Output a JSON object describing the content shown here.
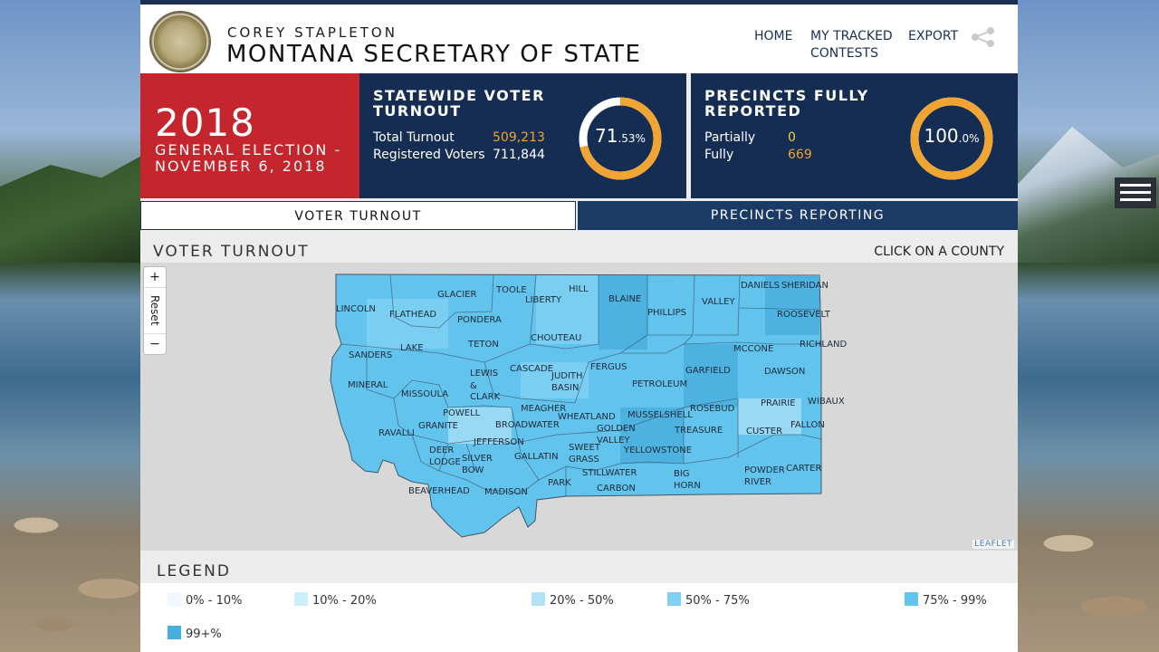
{
  "header": {
    "subtitle": "COREY STAPLETON",
    "title": "MONTANA SECRETARY OF STATE",
    "nav": {
      "home": "HOME",
      "tracked": "MY TRACKED CONTESTS",
      "export": "EXPORT"
    }
  },
  "election": {
    "year": "2018",
    "name": "GENERAL ELECTION - NOVEMBER 6, 2018"
  },
  "turnout": {
    "title": "STATEWIDE VOTER TURNOUT",
    "total_label": "Total Turnout",
    "total_value": "509,213",
    "registered_label": "Registered Voters",
    "registered_value": "711,844",
    "pct_main": "71",
    "pct_dec": ".53%",
    "fraction": 0.7153
  },
  "precincts": {
    "title": "PRECINCTS FULLY REPORTED",
    "partial_label": "Partially",
    "partial_value": "0",
    "fully_label": "Fully",
    "fully_value": "669",
    "pct_main": "100",
    "pct_dec": ".0%",
    "fraction": 1.0
  },
  "tabs": {
    "turnout": "VOTER TURNOUT",
    "precincts": "PRECINCTS REPORTING"
  },
  "map": {
    "title": "VOTER TURNOUT",
    "hint": "CLICK ON A COUNTY",
    "zoom_in": "+",
    "reset": "Reset",
    "zoom_out": "−",
    "attribution": "LEAFLET",
    "counties": [
      "GLACIER",
      "TOOLE",
      "LIBERTY",
      "HILL",
      "BLAINE",
      "PHILLIPS",
      "VALLEY",
      "DANIELS",
      "SHERIDAN",
      "ROOSEVELT",
      "LINCOLN",
      "FLATHEAD",
      "PONDERA",
      "CHOUTEAU",
      "RICHLAND",
      "MCCONE",
      "LAKE",
      "TETON",
      "SANDERS",
      "LEWIS & CLARK",
      "CASCADE",
      "JUDITH BASIN",
      "FERGUS",
      "GARFIELD",
      "DAWSON",
      "PETROLEUM",
      "MINERAL",
      "MISSOULA",
      "PRAIRIE",
      "WIBAUX",
      "MEAGHER",
      "POWELL",
      "WHEATLAND",
      "MUSSELSHELL",
      "ROSEBUD",
      "FALLON",
      "GRANITE",
      "BROADWATER",
      "GOLDEN VALLEY",
      "TREASURE",
      "CUSTER",
      "RAVALLI",
      "JEFFERSON",
      "DEER LODGE",
      "SWEET GRASS",
      "YELLOWSTONE",
      "SILVER BOW",
      "GALLATIN",
      "STILLWATER",
      "BIG HORN",
      "POWDER RIVER",
      "CARTER",
      "PARK",
      "CARBON",
      "BEAVERHEAD",
      "MADISON"
    ]
  },
  "legend": {
    "title": "LEGEND",
    "items": [
      {
        "label": "0% - 10%",
        "color": "#eef8fd"
      },
      {
        "label": "10% - 20%",
        "color": "#cdeefb"
      },
      {
        "label": "20% - 50%",
        "color": "#b2e2f7"
      },
      {
        "label": "50% - 75%",
        "color": "#7fd0f2"
      },
      {
        "label": "75% - 99%",
        "color": "#62c3ec"
      },
      {
        "label": "99+%",
        "color": "#48aedd"
      }
    ]
  }
}
